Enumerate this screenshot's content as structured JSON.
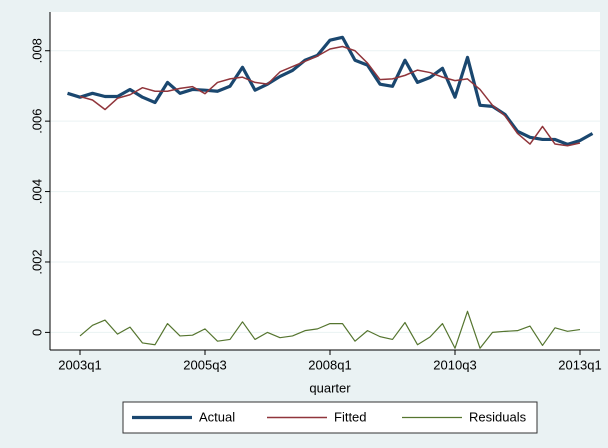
{
  "chart_data": {
    "type": "line",
    "x_label": "quarter",
    "categories": [
      null,
      "2003q1",
      null,
      null,
      null,
      null,
      null,
      null,
      null,
      null,
      null,
      "2005q3",
      null,
      null,
      null,
      null,
      null,
      null,
      null,
      null,
      null,
      "2008q1",
      null,
      null,
      null,
      null,
      null,
      null,
      null,
      null,
      null,
      "2010q3",
      null,
      null,
      null,
      null,
      null,
      null,
      null,
      null,
      null,
      "2013q1",
      null
    ],
    "series": [
      {
        "name": "Actual",
        "color": "#1a476f",
        "width": 3.2,
        "values": [
          0.00679,
          0.00668,
          0.00679,
          0.0067,
          0.0067,
          0.0069,
          0.00668,
          0.00653,
          0.0071,
          0.00679,
          0.0069,
          0.00688,
          0.00685,
          0.00699,
          0.00753,
          0.00688,
          0.00705,
          0.00727,
          0.00744,
          0.00773,
          0.00787,
          0.0083,
          0.00838,
          0.00773,
          0.00759,
          0.00705,
          0.00699,
          0.00773,
          0.0071,
          0.00724,
          0.0075,
          0.00668,
          0.00781,
          0.00645,
          0.00642,
          0.00619,
          0.00571,
          0.00554,
          0.00548,
          0.00548,
          0.00534,
          0.00545,
          0.00565
        ]
      },
      {
        "name": "Fitted",
        "color": "#90353b",
        "width": 1.5,
        "values": [
          null,
          0.0067,
          0.0066,
          0.00633,
          0.00665,
          0.00675,
          0.00695,
          0.00685,
          0.00685,
          0.00693,
          0.00698,
          0.00678,
          0.0071,
          0.0072,
          0.00725,
          0.0071,
          0.00705,
          0.0074,
          0.00755,
          0.0077,
          0.00785,
          0.00805,
          0.00812,
          0.008,
          0.00765,
          0.00718,
          0.0072,
          0.0073,
          0.00745,
          0.00738,
          0.00725,
          0.00715,
          0.0072,
          0.0069,
          0.00645,
          0.00615,
          0.00565,
          0.00535,
          0.00585,
          0.00535,
          0.0053,
          0.00538,
          null
        ]
      },
      {
        "name": "Residuals",
        "color": "#55752f",
        "width": 1.2,
        "values": [
          null,
          -0.0001,
          0.0002,
          0.00035,
          -5e-05,
          0.00015,
          -0.0003,
          -0.00035,
          0.00025,
          -0.0001,
          -8e-05,
          0.0001,
          -0.00025,
          -0.0002,
          0.0003,
          -0.0002,
          0,
          -0.00015,
          -0.0001,
          5e-05,
          0.0001,
          0.00025,
          0.00025,
          -0.00025,
          5e-05,
          -0.00012,
          -0.0002,
          0.00028,
          -0.00035,
          -0.00013,
          0.00025,
          -0.00045,
          0.0006,
          -0.00045,
          0,
          3e-05,
          5e-05,
          0.00018,
          -0.00037,
          0.00013,
          3e-05,
          8e-05,
          null
        ]
      }
    ],
    "ylim": [
      -0.0005,
      0.0091
    ],
    "yticks": [
      0,
      {
        "value": 0.002,
        "label": ".002"
      },
      {
        "value": 0.004,
        "label": ".004"
      },
      {
        "value": 0.006,
        "label": ".006"
      },
      {
        "value": 0.008,
        "label": ".008"
      }
    ],
    "grid": true,
    "legend": "bottom"
  }
}
